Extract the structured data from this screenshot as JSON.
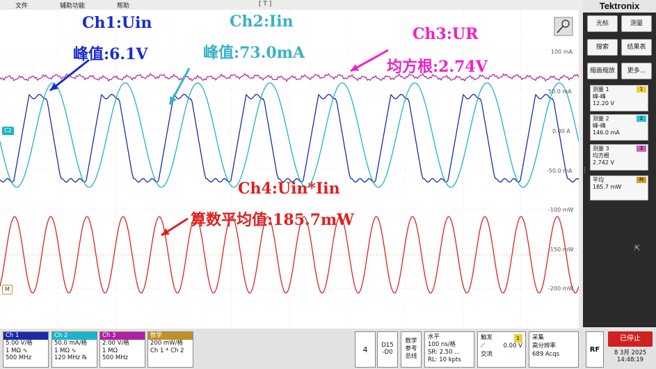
{
  "menu": {
    "file": "文件",
    "utility": "辅助功能",
    "help": "帮助"
  },
  "trigger_marker": "[ T ]",
  "channel_markers": {
    "c2": "C2",
    "m": "M"
  },
  "colors": {
    "ch1": "#1a2aa8",
    "ch2": "#1ab5c8",
    "ch3": "#b020a0",
    "ch4": "#e02020",
    "bg": "#ffffff",
    "grid": "#d0d0d0",
    "ann_ch1": "#1b2acc",
    "ann_ch2": "#3ab0c8",
    "ann_ch3": "#f020c8",
    "ann_ch4": "#e02020"
  },
  "annotations": {
    "ch1_title": "Ch1:Uin",
    "ch1_value": "峰值:6.1V",
    "ch2_title": "Ch2:Iin",
    "ch2_value": "峰值:73.0mA",
    "ch3_title": "Ch3:UR",
    "ch3_value": "均方根:2.74V",
    "ch4_title": "Ch4:Uin*Iin",
    "ch4_value": "算数平均值:185.7mW"
  },
  "axis_labels": {
    "top_group": [
      "100 mA",
      "50.0 mA",
      "0.00 A",
      "-50.0 mA"
    ],
    "bottom_group": [
      "-100 mW",
      "-150 mW",
      "-200 mW"
    ]
  },
  "right_panel": {
    "brand": "Tektronix",
    "buttons": [
      [
        "光标",
        "测量"
      ],
      [
        "搜索",
        "结果表"
      ],
      [
        "缩画缩放",
        "更多..."
      ]
    ],
    "measurements": [
      {
        "title": "测量 1",
        "type": "峰-峰",
        "value": "12.20 V",
        "badge": "1",
        "badge_color": "#e8d040"
      },
      {
        "title": "测量 2",
        "type": "峰-峰",
        "value": "146.0 mA",
        "badge": "2",
        "badge_color": "#30c0d8"
      },
      {
        "title": "测量 3",
        "type": "均方根",
        "value": "2.742 V",
        "badge": "3",
        "badge_color": "#d060c0"
      },
      {
        "title": "平均",
        "type": "",
        "value": "185.7 mW",
        "badge": "M",
        "badge_color": "#d0a020"
      }
    ]
  },
  "bottom": {
    "ch1": {
      "header": "Ch 1",
      "l1": "5.00 V/格",
      "l2": "1 MΩ ∿",
      "l3": "500 MHz",
      "color": "#1a2aa8"
    },
    "ch2": {
      "header": "Ch 2",
      "l1": "50.0 mA/格",
      "l2": "1 MΩ ∿",
      "l3": "120 MHz ℞",
      "color": "#1ab5c8"
    },
    "ch3": {
      "header": "Ch 3",
      "l1": "2.00 V/格",
      "l2": "1 MΩ",
      "l3": "500 MHz",
      "color": "#b020a0"
    },
    "math": {
      "header": "数学",
      "l1": "200 mW/格",
      "l2": "Ch 1 * Ch 2",
      "color": "#c09020"
    },
    "ch4_btn": "4",
    "digital": {
      "l1": "D15",
      "l2": "-D0"
    },
    "ref": {
      "l1": "数学",
      "l2": "参考",
      "l3": "总线"
    },
    "horizontal": {
      "title": "水平",
      "l1": "100 ns/格",
      "l2": "SR: 2.50 ...",
      "l3": "RL: 10 kpts"
    },
    "trigger": {
      "title": "触发",
      "badge": "1",
      "l1": "0.00 V",
      "l2": "交流"
    },
    "acquire": {
      "title": "采集",
      "l1": "高分辨率",
      "l2": "689 Acqs"
    },
    "rf": "RF",
    "stop": "已停止",
    "date": "8 3月 2025",
    "time": "14:48:19"
  }
}
